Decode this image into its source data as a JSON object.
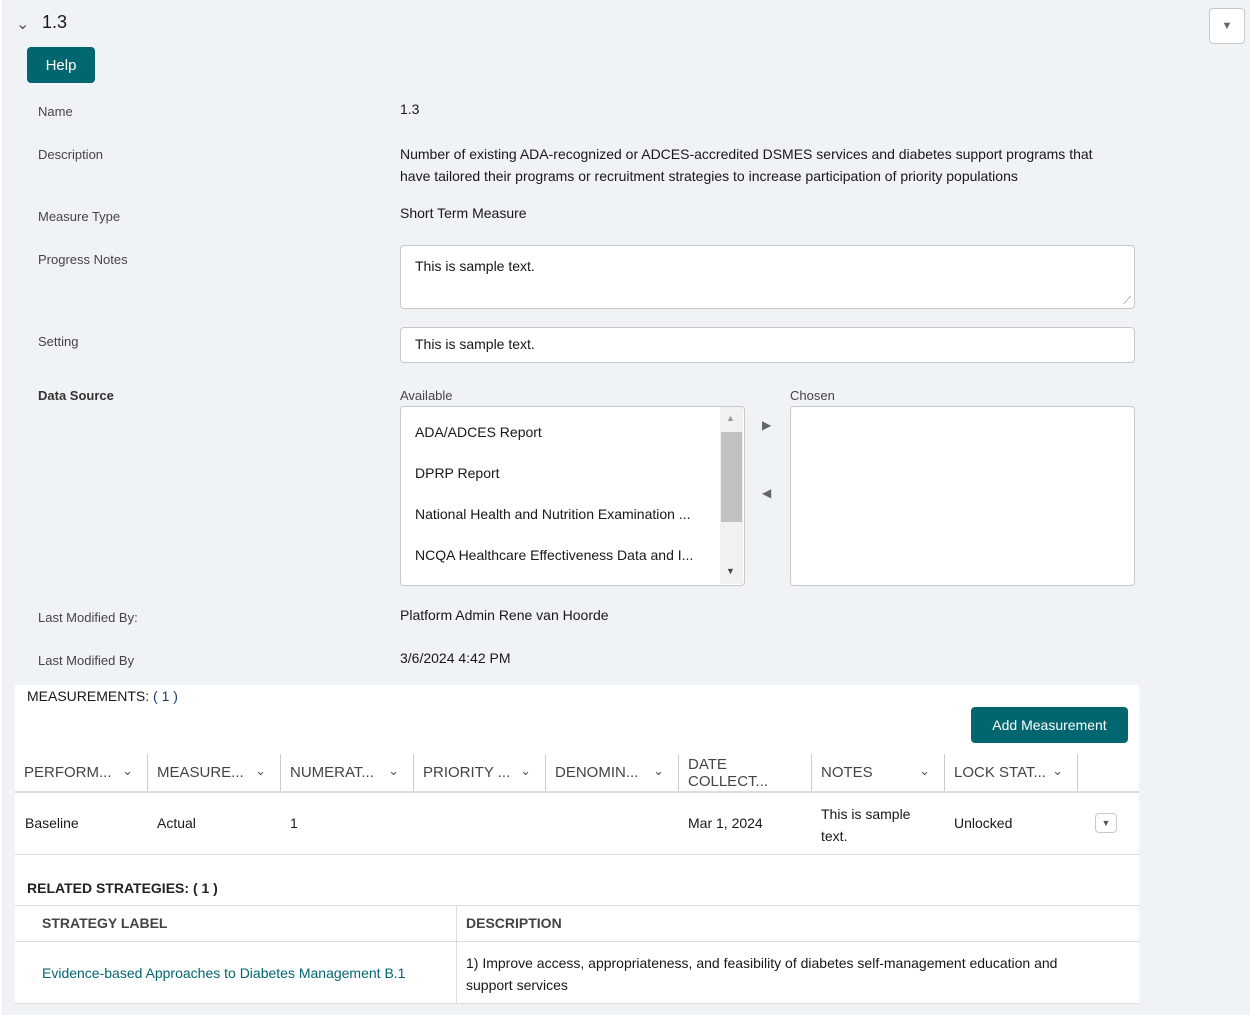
{
  "header": {
    "title": "1.3",
    "help_label": "Help"
  },
  "fields": {
    "name_label": "Name",
    "name_value": "1.3",
    "description_label": "Description",
    "description_value": "Number of existing ADA-recognized or ADCES-accredited DSMES services and diabetes support programs that have tailored their programs or recruitment strategies to increase participation of priority populations",
    "measure_type_label": "Measure Type",
    "measure_type_value": "Short Term Measure",
    "progress_notes_label": "Progress Notes",
    "progress_notes_value": "This is sample text.",
    "setting_label": "Setting",
    "setting_value": "This is sample text.",
    "data_source_label": "Data Source",
    "available_label": "Available",
    "chosen_label": "Chosen",
    "available_options": [
      "ADA/ADCES Report",
      "DPRP Report",
      "National Health and Nutrition Examination ...",
      "NCQA Healthcare Effectiveness Data and I..."
    ],
    "last_modified_by_label": "Last Modified By:",
    "last_modified_by_value": "Platform Admin Rene van Hoorde",
    "last_modified_date_label": "Last Modified By",
    "last_modified_date_value": "3/6/2024 4:42 PM"
  },
  "measurements": {
    "title": "MEASUREMENTS:",
    "count": "( 1 )",
    "add_label": "Add Measurement",
    "columns": [
      "PERFORM...",
      "MEASURE...",
      "NUMERAT...",
      "PRIORITY ...",
      "DENOMIN...",
      "DATE COLLECT...",
      "NOTES",
      "LOCK STAT..."
    ],
    "rows": [
      {
        "performance": "Baseline",
        "measure": "Actual",
        "numerator": "1",
        "priority": "",
        "denominator": "",
        "date": "Mar 1, 2024",
        "notes": "This is sample text.",
        "lock": "Unlocked"
      }
    ]
  },
  "strategies": {
    "title": "RELATED STRATEGIES:",
    "count": "( 1 )",
    "col_label": "STRATEGY LABEL",
    "col_desc": "DESCRIPTION",
    "rows": [
      {
        "label": "Evidence-based Approaches to Diabetes Management B.1",
        "description": "1) Improve access, appropriateness, and feasibility of diabetes self-management education and support services"
      }
    ]
  },
  "colors": {
    "accent": "#016670",
    "link": "#016670"
  }
}
